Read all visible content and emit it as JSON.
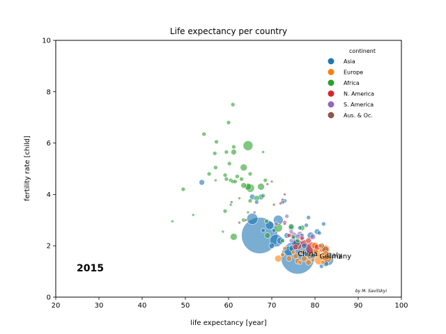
{
  "chart_data": {
    "type": "scatter",
    "title": "Life expectancy per country",
    "xlabel": "life expectancy [year]",
    "ylabel": "fertility rate [child]",
    "xlim": [
      20,
      100
    ],
    "ylim": [
      0,
      10
    ],
    "xticks": [
      20,
      30,
      40,
      50,
      60,
      70,
      80,
      90,
      100
    ],
    "yticks": [
      0,
      2,
      4,
      6,
      8,
      10
    ],
    "grid": false,
    "year_label": "2015",
    "credit": "by M. Savitskyi",
    "legend": {
      "title": "continent",
      "placement": "top-right",
      "entries": [
        "Asia",
        "Europe",
        "Africa",
        "N. America",
        "S. America",
        "Aus. & Oc."
      ]
    },
    "colors": {
      "Asia": "#1f77b4",
      "Europe": "#ff7f0e",
      "Africa": "#2ca02c",
      "N. America": "#d62728",
      "S. America": "#9467bd",
      "Aus. & Oc.": "#8c564b"
    },
    "annotations": [
      {
        "text": "China",
        "x": 76.0,
        "y": 1.6
      },
      {
        "text": "Italy",
        "x": 82.8,
        "y": 1.55
      },
      {
        "text": "Germany",
        "x": 81.0,
        "y": 1.5
      }
    ],
    "series": [
      {
        "name": "Asia",
        "points": [
          [
            67.2,
            2.4,
            26
          ],
          [
            76.0,
            1.55,
            24
          ],
          [
            71.0,
            2.2,
            9
          ],
          [
            69.5,
            2.8,
            6
          ],
          [
            65.5,
            3.05,
            8
          ],
          [
            71.5,
            3.0,
            7
          ],
          [
            73.0,
            3.75,
            3
          ],
          [
            74.5,
            2.7,
            4
          ],
          [
            75.5,
            2.1,
            6
          ],
          [
            78.0,
            2.8,
            3
          ],
          [
            79.0,
            2.4,
            5
          ],
          [
            80.5,
            2.55,
            4
          ],
          [
            83.0,
            1.45,
            8
          ],
          [
            82.5,
            1.3,
            4
          ],
          [
            81.5,
            1.2,
            3
          ],
          [
            53.8,
            4.47,
            4
          ],
          [
            65.5,
            3.9,
            4
          ],
          [
            66.5,
            3.7,
            3
          ],
          [
            67.5,
            3.9,
            4
          ],
          [
            72.5,
            3.7,
            3
          ],
          [
            75.0,
            2.3,
            3
          ],
          [
            76.5,
            2.7,
            3
          ],
          [
            77.5,
            2.0,
            4
          ],
          [
            74.0,
            1.8,
            7
          ],
          [
            73.5,
            2.4,
            4
          ],
          [
            70.5,
            2.6,
            3
          ],
          [
            68.0,
            2.6,
            3
          ],
          [
            72.0,
            2.2,
            5
          ],
          [
            78.5,
            3.1,
            3
          ],
          [
            81.0,
            2.5,
            3
          ],
          [
            82.0,
            2.85,
            3
          ],
          [
            77.0,
            2.4,
            3
          ],
          [
            79.5,
            1.6,
            4
          ],
          [
            70.0,
            2.0,
            4
          ],
          [
            74.8,
            1.9,
            5
          ]
        ]
      },
      {
        "name": "Europe",
        "points": [
          [
            82.8,
            1.5,
            6
          ],
          [
            81.0,
            1.45,
            7
          ],
          [
            82.3,
            1.85,
            7
          ],
          [
            81.5,
            1.9,
            6
          ],
          [
            80.5,
            1.7,
            5
          ],
          [
            79.0,
            1.6,
            5
          ],
          [
            77.5,
            1.5,
            4
          ],
          [
            75.5,
            1.6,
            4
          ],
          [
            74.0,
            1.5,
            4
          ],
          [
            71.5,
            1.5,
            5
          ],
          [
            73.0,
            1.9,
            3
          ],
          [
            76.0,
            1.4,
            4
          ],
          [
            78.5,
            1.35,
            4
          ],
          [
            80.0,
            2.0,
            5
          ],
          [
            81.8,
            1.35,
            3
          ],
          [
            82.5,
            1.7,
            4
          ],
          [
            81.5,
            1.6,
            3
          ],
          [
            80.2,
            1.8,
            4
          ],
          [
            77.0,
            1.75,
            3
          ],
          [
            75.0,
            1.75,
            3
          ],
          [
            72.5,
            1.65,
            3
          ],
          [
            79.5,
            1.45,
            3
          ],
          [
            81.2,
            2.0,
            3
          ],
          [
            83.0,
            1.55,
            3
          ],
          [
            76.5,
            1.35,
            3
          ]
        ]
      },
      {
        "name": "Africa",
        "points": [
          [
            61.0,
            7.5,
            3
          ],
          [
            60.0,
            6.8,
            3
          ],
          [
            54.3,
            6.35,
            3
          ],
          [
            57.2,
            6.05,
            3
          ],
          [
            56.8,
            5.6,
            3
          ],
          [
            59.5,
            5.65,
            3
          ],
          [
            61.2,
            5.85,
            3
          ],
          [
            64.5,
            5.9,
            7
          ],
          [
            61.2,
            5.65,
            4
          ],
          [
            68.0,
            5.65,
            2
          ],
          [
            60.2,
            5.2,
            3
          ],
          [
            57.0,
            5.05,
            3
          ],
          [
            63.5,
            5.05,
            5
          ],
          [
            65.0,
            4.8,
            3
          ],
          [
            59.2,
            4.75,
            3
          ],
          [
            55.5,
            4.8,
            3
          ],
          [
            59.5,
            4.6,
            3
          ],
          [
            60.5,
            4.55,
            3
          ],
          [
            61.0,
            4.5,
            3
          ],
          [
            61.5,
            4.5,
            3
          ],
          [
            62.0,
            4.7,
            3
          ],
          [
            63.0,
            4.6,
            3
          ],
          [
            64.5,
            4.3,
            5
          ],
          [
            65.0,
            4.25,
            6
          ],
          [
            67.5,
            4.3,
            5
          ],
          [
            68.5,
            4.55,
            3
          ],
          [
            70.0,
            4.5,
            2
          ],
          [
            57.0,
            4.55,
            2
          ],
          [
            49.5,
            4.2,
            3
          ],
          [
            63.5,
            4.35,
            4
          ],
          [
            65.0,
            3.75,
            3
          ],
          [
            66.5,
            3.85,
            4
          ],
          [
            68.0,
            3.95,
            3
          ],
          [
            59.2,
            3.35,
            3
          ],
          [
            51.8,
            3.2,
            2
          ],
          [
            47.0,
            2.95,
            2
          ],
          [
            61.2,
            2.35,
            5
          ],
          [
            63.5,
            3.0,
            3
          ],
          [
            58.7,
            2.55,
            2
          ],
          [
            71.5,
            2.7,
            6
          ],
          [
            77.0,
            2.7,
            4
          ],
          [
            74.5,
            2.75,
            4
          ],
          [
            69.0,
            2.4,
            4
          ],
          [
            72.5,
            2.2,
            3
          ],
          [
            64.5,
            3.3,
            2
          ],
          [
            75.0,
            2.35,
            3
          ],
          [
            76.0,
            2.2,
            3
          ],
          [
            60.5,
            3.6,
            2
          ],
          [
            62.5,
            3.85,
            2
          ],
          [
            68.8,
            2.95,
            3
          ]
        ]
      },
      {
        "name": "N. America",
        "points": [
          [
            79.3,
            1.9,
            9
          ],
          [
            78.5,
            2.2,
            4
          ],
          [
            77.0,
            2.3,
            3
          ],
          [
            80.5,
            1.95,
            4
          ],
          [
            76.0,
            2.05,
            7
          ],
          [
            74.0,
            2.4,
            3
          ],
          [
            75.5,
            1.95,
            4
          ],
          [
            73.0,
            2.9,
            3
          ],
          [
            72.0,
            3.65,
            2
          ],
          [
            77.5,
            2.1,
            5
          ]
        ]
      },
      {
        "name": "S. America",
        "points": [
          [
            75.0,
            2.4,
            5
          ],
          [
            76.5,
            2.45,
            4
          ],
          [
            77.0,
            2.3,
            4
          ],
          [
            74.5,
            2.2,
            3
          ],
          [
            79.5,
            2.35,
            4
          ],
          [
            73.5,
            3.15,
            3
          ],
          [
            74.5,
            2.55,
            3
          ],
          [
            76.0,
            2.35,
            4
          ],
          [
            71.0,
            2.85,
            3
          ],
          [
            73.0,
            2.85,
            2
          ]
        ]
      },
      {
        "name": "Aus. & Oc.",
        "points": [
          [
            82.4,
            1.85,
            5
          ],
          [
            81.5,
            2.0,
            4
          ],
          [
            73.0,
            4.0,
            2
          ],
          [
            70.5,
            3.6,
            2
          ],
          [
            69.0,
            4.4,
            2
          ],
          [
            64.0,
            3.0,
            2
          ],
          [
            66.0,
            3.3,
            2
          ],
          [
            72.5,
            3.8,
            2
          ],
          [
            60.7,
            3.7,
            2
          ],
          [
            62.5,
            2.9,
            2
          ]
        ]
      }
    ]
  }
}
